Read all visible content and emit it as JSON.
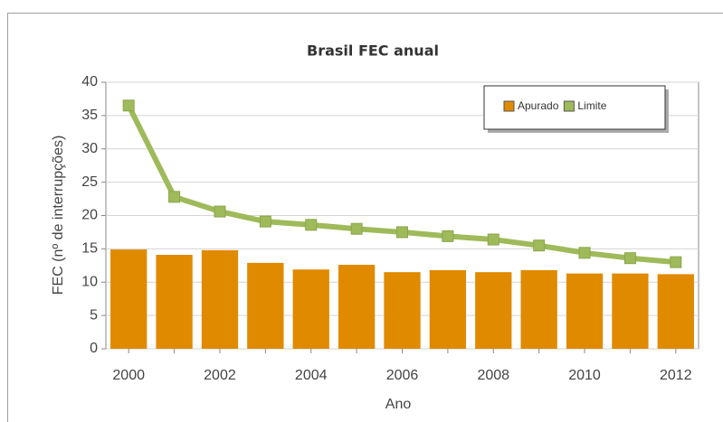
{
  "chart_data": {
    "type": "bar",
    "title": "Brasil FEC anual",
    "x_label": "Ano",
    "y_label": "FEC (nº de interrupções)",
    "categories": [
      "2000",
      null,
      "2002",
      null,
      "2004",
      null,
      "2006",
      null,
      "2008",
      null,
      "2010",
      null,
      "2012"
    ],
    "series": [
      {
        "name": "Apurado",
        "type": "bar",
        "color": "#e08a00",
        "values": [
          14.9,
          14.1,
          14.8,
          12.9,
          11.9,
          12.6,
          11.5,
          11.8,
          11.5,
          11.8,
          11.3,
          11.3,
          11.2
        ]
      },
      {
        "name": "Limite",
        "type": "line",
        "color": "#9fba5a",
        "values": [
          36.5,
          22.8,
          20.6,
          19.1,
          18.6,
          18.0,
          17.5,
          16.9,
          16.4,
          15.5,
          14.4,
          13.6,
          13.0
        ]
      }
    ],
    "ylim": [
      0,
      40
    ],
    "yticks": [
      0,
      5,
      10,
      15,
      20,
      25,
      30,
      35,
      40
    ],
    "grid": true,
    "legend": "upper right"
  }
}
